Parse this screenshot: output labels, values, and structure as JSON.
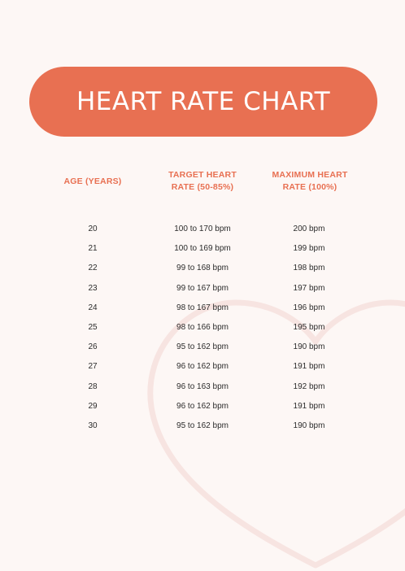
{
  "title": "HEART RATE CHART",
  "headers": {
    "age": "AGE (YEARS)",
    "target_line1": "TARGET HEART",
    "target_line2": "RATE (50-85%)",
    "max_line1": "MAXIMUM HEART",
    "max_line2": "RATE (100%)"
  },
  "rows": [
    {
      "age": "20",
      "target": "100 to 170 bpm",
      "max": "200 bpm"
    },
    {
      "age": "21",
      "target": "100 to 169 bpm",
      "max": "199 bpm"
    },
    {
      "age": "22",
      "target": "99 to 168 bpm",
      "max": "198 bpm"
    },
    {
      "age": "23",
      "target": "99 to 167 bpm",
      "max": "197 bpm"
    },
    {
      "age": "24",
      "target": "98 to 167 bpm",
      "max": "196 bpm"
    },
    {
      "age": "25",
      "target": "98 to 166 bpm",
      "max": "195 bpm"
    },
    {
      "age": "26",
      "target": "95 to 162 bpm",
      "max": "190 bpm"
    },
    {
      "age": "27",
      "target": "96 to 162 bpm",
      "max": "191 bpm"
    },
    {
      "age": "28",
      "target": "96 to 163 bpm",
      "max": "192 bpm"
    },
    {
      "age": "29",
      "target": "96 to 162 bpm",
      "max": "191 bpm"
    },
    {
      "age": "30",
      "target": "95 to 162 bpm",
      "max": "190 bpm"
    }
  ],
  "colors": {
    "accent": "#e87052",
    "background": "#fdf7f5",
    "heart_outline": "#f7e6e3"
  },
  "decorations": {
    "background_icon": "heart-outline-icon"
  }
}
